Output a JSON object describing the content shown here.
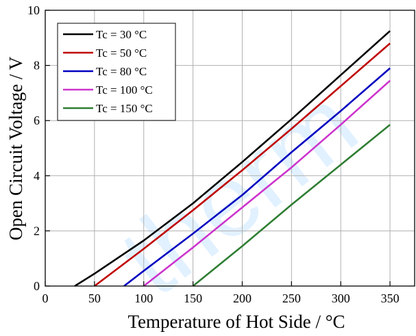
{
  "chart_data": {
    "type": "line",
    "xlabel": "Temperature of Hot Side / °C",
    "ylabel": "Open Circuit Voltage / V",
    "xlim": [
      0,
      375
    ],
    "ylim": [
      0,
      10
    ],
    "xticks": [
      0,
      50,
      100,
      150,
      200,
      250,
      300,
      350
    ],
    "yticks": [
      0,
      2,
      4,
      6,
      8,
      10
    ],
    "grid": true,
    "legend_position": "top-left",
    "series": [
      {
        "name": "Tc = 30 °C",
        "color": "#000000",
        "x": [
          30,
          50,
          100,
          150,
          200,
          250,
          300,
          350
        ],
        "y": [
          0.0,
          0.45,
          1.65,
          3.0,
          4.5,
          6.05,
          7.65,
          9.25
        ]
      },
      {
        "name": "Tc = 50 °C",
        "color": "#c00000",
        "x": [
          50,
          100,
          150,
          200,
          250,
          300,
          350
        ],
        "y": [
          0.0,
          1.35,
          2.75,
          4.2,
          5.7,
          7.25,
          8.8
        ]
      },
      {
        "name": "Tc = 80 °C",
        "color": "#0000c0",
        "x": [
          80,
          100,
          150,
          200,
          250,
          300,
          350
        ],
        "y": [
          0.0,
          0.55,
          1.9,
          3.3,
          4.85,
          6.35,
          7.9
        ]
      },
      {
        "name": "Tc = 100 °C",
        "color": "#cc33cc",
        "x": [
          100,
          150,
          200,
          250,
          300,
          350
        ],
        "y": [
          0.0,
          1.4,
          2.85,
          4.3,
          5.85,
          7.45
        ]
      },
      {
        "name": "Tc = 150 °C",
        "color": "#2e7d32",
        "x": [
          150,
          200,
          250,
          300,
          350
        ],
        "y": [
          0.0,
          1.45,
          2.95,
          4.4,
          5.85
        ]
      }
    ]
  },
  "watermark": {
    "text": "therm"
  }
}
